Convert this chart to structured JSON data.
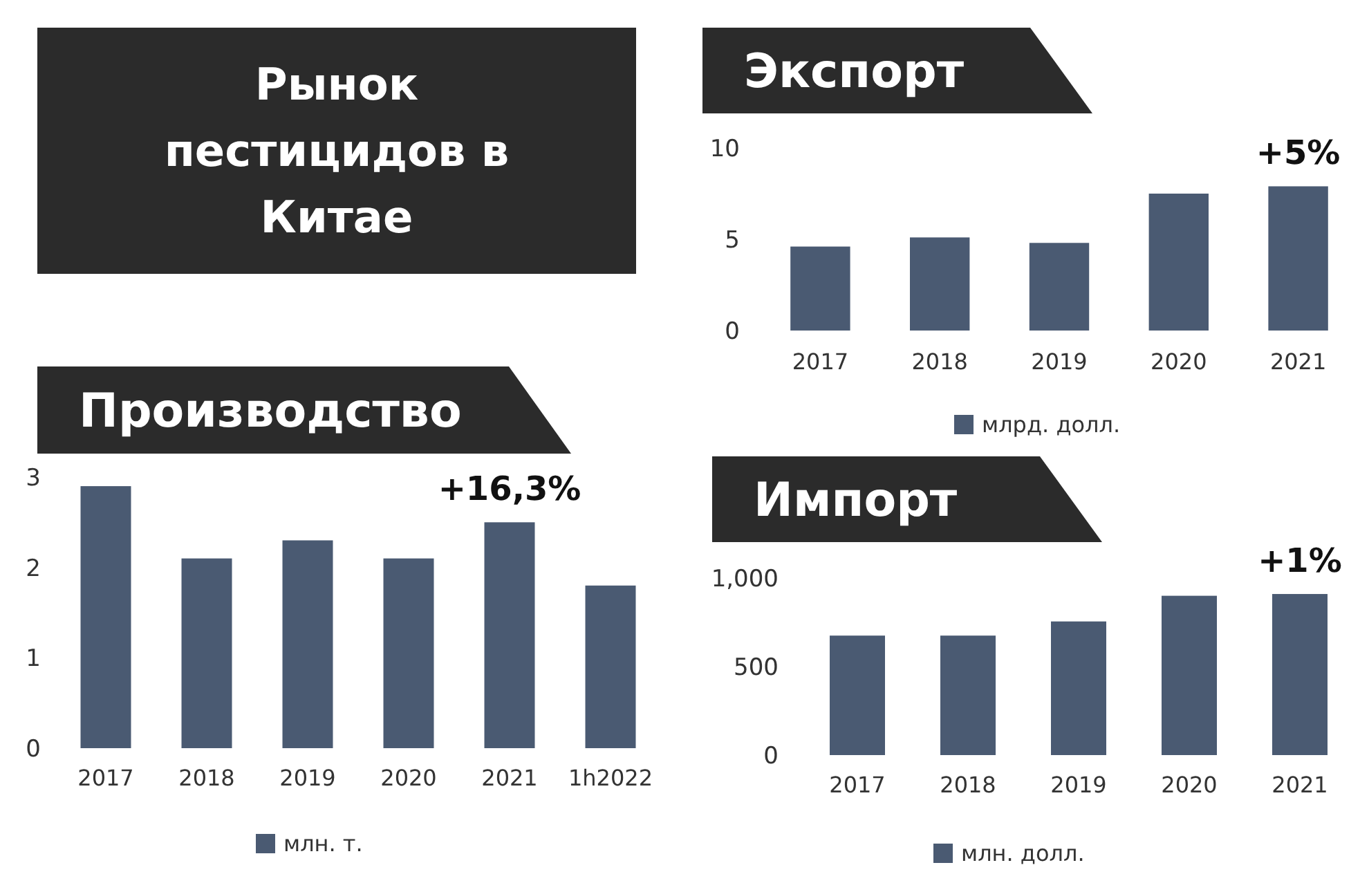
{
  "chart_data": [
    {
      "type": "other",
      "title": "Рынок пестицидов в Китае"
    },
    {
      "type": "bar",
      "title": "Экспорт",
      "categories": [
        "2017",
        "2018",
        "2019",
        "2020",
        "2021"
      ],
      "series": [
        {
          "name": "млрд. долл.",
          "color": "#4a5a72",
          "values": [
            4.6,
            5.1,
            4.8,
            7.5,
            7.9
          ]
        }
      ],
      "ylim": [
        0,
        10
      ],
      "yticks": [
        0,
        5,
        10
      ],
      "grid": false,
      "legend": "bottom",
      "annotations": [
        {
          "text": "+5%",
          "x": "2021",
          "y": 7.9
        }
      ]
    },
    {
      "type": "bar",
      "title": "Производство",
      "categories": [
        "2017",
        "2018",
        "2019",
        "2020",
        "2021",
        "1h2022"
      ],
      "series": [
        {
          "name": "млн. т.",
          "color": "#4a5a72",
          "values": [
            2.9,
            2.1,
            2.3,
            2.1,
            2.5,
            1.8
          ]
        }
      ],
      "ylim": [
        0,
        3
      ],
      "yticks": [
        0,
        1,
        2,
        3
      ],
      "grid": false,
      "legend": "bottom",
      "annotations": [
        {
          "text": "+16,3%",
          "x": "2021",
          "y": 2.5
        }
      ]
    },
    {
      "type": "bar",
      "title": "Импорт",
      "categories": [
        "2017",
        "2018",
        "2019",
        "2020",
        "2021"
      ],
      "series": [
        {
          "name": "млн. долл.",
          "color": "#4a5a72",
          "values": [
            675,
            675,
            755,
            900,
            910
          ]
        }
      ],
      "ylim": [
        0,
        1000
      ],
      "yticks": [
        0,
        500,
        {
          "value": 1000,
          "label": "1,000"
        }
      ],
      "grid": false,
      "legend": "bottom",
      "annotations": [
        {
          "text": "+1%",
          "x": "2021",
          "y": 910
        }
      ]
    }
  ]
}
